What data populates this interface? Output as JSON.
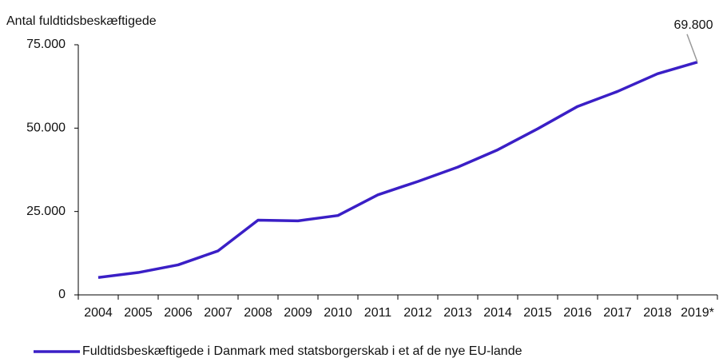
{
  "chart_data": {
    "type": "line",
    "y_axis_label": "Antal fuldtidsbeskæftigede",
    "categories": [
      "2004",
      "2005",
      "2006",
      "2007",
      "2008",
      "2009",
      "2010",
      "2011",
      "2012",
      "2013",
      "2014",
      "2015",
      "2016",
      "2017",
      "2018",
      "2019*"
    ],
    "series": [
      {
        "name": "Fuldtidsbeskæftigede i Danmark med statsborgerskab i et af de nye EU-lande",
        "color": "#3a1fc6",
        "values": [
          5200,
          6700,
          9000,
          13200,
          22400,
          22200,
          23800,
          30000,
          34000,
          38300,
          43500,
          49800,
          56500,
          61000,
          66300,
          69800
        ],
        "value_labels": [
          null,
          null,
          null,
          null,
          null,
          null,
          null,
          null,
          null,
          null,
          null,
          null,
          null,
          null,
          null,
          "69.800"
        ]
      }
    ],
    "ylim": [
      0,
      75000
    ],
    "yticks": [
      0,
      {
        "value": 25000,
        "label": "25.000"
      },
      {
        "value": 50000,
        "label": "50.000"
      },
      {
        "value": 75000,
        "label": "75.000"
      }
    ],
    "grid": false,
    "legend": "bottom"
  }
}
